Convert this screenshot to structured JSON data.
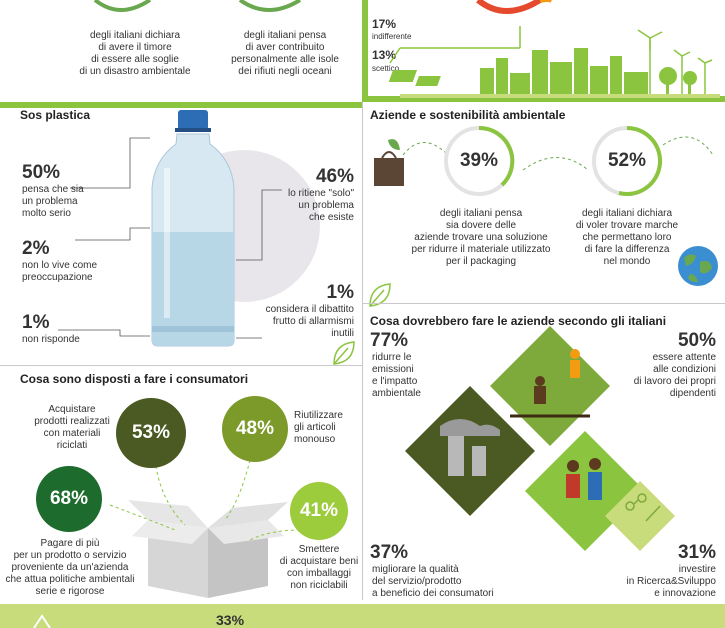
{
  "colors": {
    "green_dark": "#4a7a1e",
    "green_mid": "#6aa84f",
    "green_light": "#8bc53f",
    "lime": "#c8dc7c",
    "olive": "#5b6b2c"
  },
  "top": {
    "stat1_text": [
      "degli italiani dichiara",
      "di avere il timore",
      "di essere alle soglie",
      "di un disastro ambientale"
    ],
    "stat2_text": [
      "degli italiani pensa",
      "di aver contribuito",
      "personalmente alle isole",
      "dei rifiuti negli oceani"
    ],
    "indiff_pct": "17%",
    "indiff_label": "indifferente",
    "scett_pct": "13%",
    "scett_label": "scettico"
  },
  "plastica": {
    "title": "Sos plastica",
    "a_pct": "50%",
    "a_text": [
      "pensa che sia",
      "un problema",
      "molto serio"
    ],
    "b_pct": "2%",
    "b_text": [
      "non lo vive come",
      "preoccupazione"
    ],
    "c_pct": "1%",
    "c_text": [
      "non risponde"
    ],
    "d_pct": "46%",
    "d_text": [
      "lo ritiene \"solo\"",
      "un problema",
      "che esiste"
    ],
    "e_pct": "1%",
    "e_text": [
      "considera il dibattito",
      "frutto di allarmismi",
      "inutili"
    ]
  },
  "aziende": {
    "title": "Aziende e sostenibilità ambientale",
    "a_pct": "39%",
    "a_text": [
      "degli italiani pensa",
      "sia dovere delle",
      "aziende trovare una soluzione",
      "per ridurre il materiale utilizzato",
      "per il packaging"
    ],
    "b_pct": "52%",
    "b_text": [
      "degli italiani dichiara",
      "di voler trovare marche",
      "che permettano loro",
      "di fare la differenza",
      "nel mondo"
    ]
  },
  "consumatori": {
    "title": "Cosa sono disposti a fare i consumatori",
    "a_pct": "53%",
    "a_text": [
      "Acquistare",
      "prodotti realizzati",
      "con materiali",
      "riciclati"
    ],
    "b_pct": "48%",
    "b_text": [
      "Riutilizzare",
      "gli articoli",
      "monouso"
    ],
    "c_pct": "68%",
    "c_text": [
      "Pagare di più",
      "per un prodotto o servizio",
      "proveniente da un'azienda",
      "che attua politiche ambientali",
      "serie e rigorose"
    ],
    "d_pct": "41%",
    "d_text": [
      "Smettere",
      "di acquistare beni",
      "con imballaggi",
      "non riciclabili"
    ]
  },
  "cosa": {
    "title": "Cosa dovrebbero fare le aziende secondo gli italiani",
    "a_pct": "77%",
    "a_text": [
      "ridurre le",
      "emissioni",
      "e l'impatto",
      "ambientale"
    ],
    "b_pct": "50%",
    "b_text": [
      "essere attente",
      "alle condizioni",
      "di lavoro dei propri",
      "dipendenti"
    ],
    "c_pct": "37%",
    "c_text": [
      "migliorare la qualità",
      "del servizio/prodotto",
      "a beneficio dei consumatori"
    ],
    "d_pct": "31%",
    "d_text": [
      "investire",
      "in Ricerca&Sviluppo",
      "e innovazione"
    ]
  },
  "bottom": {
    "pct": "33%"
  }
}
